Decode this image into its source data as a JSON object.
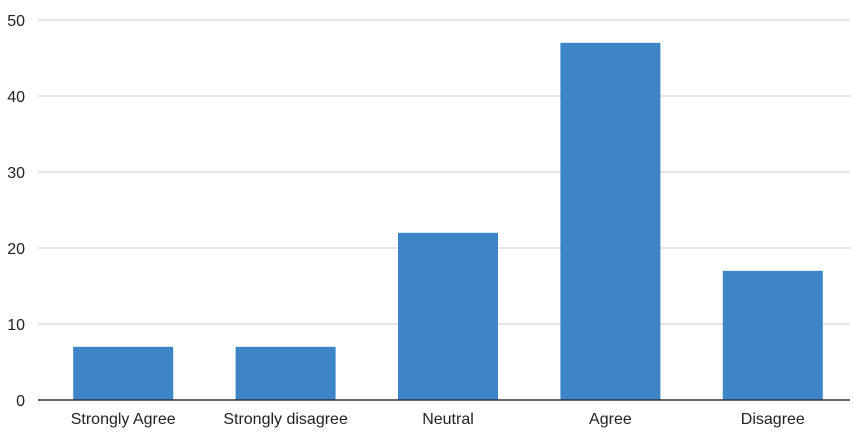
{
  "chart_data": {
    "type": "bar",
    "title": "",
    "xlabel": "",
    "ylabel": "",
    "categories": [
      "Strongly Agree",
      "Strongly disagree",
      "Neutral",
      "Agree",
      "Disagree"
    ],
    "values": [
      7,
      7,
      22,
      47,
      17
    ],
    "ylim": [
      0,
      50
    ],
    "yticks": [
      "0",
      "10",
      "20",
      "30",
      "40",
      "50"
    ],
    "grid": true,
    "legend": "none",
    "colors": {
      "bar": "#3d85c6",
      "grid": "#cccccc",
      "axis": "#333333",
      "text": "#222222"
    }
  }
}
